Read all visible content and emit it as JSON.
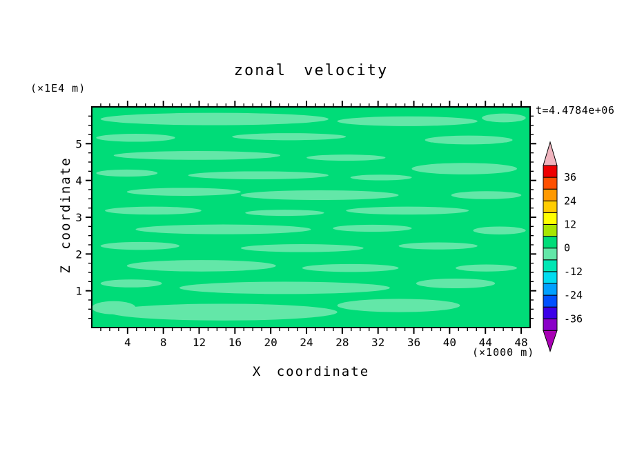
{
  "title": "zonal velocity",
  "time_label": "t=4.4784e+06",
  "y_unit_label": "(×1E4 m)",
  "x_unit_label": "(×1000 m)",
  "xlabel": "X coordinate",
  "ylabel": "Z coordinate",
  "chart_data": {
    "type": "heatmap",
    "title": "zonal velocity",
    "xlabel": "X coordinate",
    "ylabel": "Z coordinate",
    "x_units": "(×1000 m)",
    "y_units": "(×1E4 m)",
    "time_annotation": "t=4.4784e+06",
    "xlim": [
      0,
      49
    ],
    "ylim": [
      0,
      6
    ],
    "xticks": [
      4,
      8,
      12,
      16,
      20,
      24,
      28,
      32,
      36,
      40,
      44,
      48
    ],
    "yticks": [
      1,
      2,
      3,
      4,
      5
    ],
    "x_minor_step": 1,
    "y_minor_step": 0.25,
    "grid": false,
    "field_note": "zonal velocity field is near zero everywhere: base color is the 0..6 contour band, streaks are the -6..0 band",
    "field_colors": {
      "base": "#00DC78",
      "band": "#63E7A8"
    },
    "colorbar": {
      "position": "right",
      "tick_values": [
        36,
        24,
        12,
        0,
        -12,
        -24,
        -36
      ],
      "levels": [
        -42,
        -36,
        -30,
        -24,
        -18,
        -12,
        -6,
        0,
        6,
        12,
        18,
        24,
        30,
        36,
        42
      ],
      "colors_bottom_to_top": [
        "#8A00C8",
        "#3C00E8",
        "#0050FF",
        "#00A0FF",
        "#00DCF0",
        "#00E6B4",
        "#63E7A8",
        "#00DC78",
        "#A8E600",
        "#FFFF00",
        "#FFCC00",
        "#FF9900",
        "#FF5000",
        "#EE0000"
      ],
      "under_arrow_color": "#A800B4",
      "over_arrow_color": "#F0B4BE"
    },
    "bands": [
      {
        "cx": 0.28,
        "cy": 0.055,
        "rx": 0.26,
        "ry": 0.028
      },
      {
        "cx": 0.72,
        "cy": 0.065,
        "rx": 0.16,
        "ry": 0.022
      },
      {
        "cx": 0.94,
        "cy": 0.05,
        "rx": 0.05,
        "ry": 0.02
      },
      {
        "cx": 0.1,
        "cy": 0.14,
        "rx": 0.09,
        "ry": 0.018
      },
      {
        "cx": 0.45,
        "cy": 0.135,
        "rx": 0.13,
        "ry": 0.016
      },
      {
        "cx": 0.86,
        "cy": 0.15,
        "rx": 0.1,
        "ry": 0.02
      },
      {
        "cx": 0.24,
        "cy": 0.22,
        "rx": 0.19,
        "ry": 0.02
      },
      {
        "cx": 0.58,
        "cy": 0.23,
        "rx": 0.09,
        "ry": 0.014
      },
      {
        "cx": 0.85,
        "cy": 0.28,
        "rx": 0.12,
        "ry": 0.026
      },
      {
        "cx": 0.08,
        "cy": 0.3,
        "rx": 0.07,
        "ry": 0.016
      },
      {
        "cx": 0.38,
        "cy": 0.31,
        "rx": 0.16,
        "ry": 0.018
      },
      {
        "cx": 0.66,
        "cy": 0.32,
        "rx": 0.07,
        "ry": 0.013
      },
      {
        "cx": 0.21,
        "cy": 0.385,
        "rx": 0.13,
        "ry": 0.018
      },
      {
        "cx": 0.52,
        "cy": 0.4,
        "rx": 0.18,
        "ry": 0.022
      },
      {
        "cx": 0.9,
        "cy": 0.4,
        "rx": 0.08,
        "ry": 0.018
      },
      {
        "cx": 0.14,
        "cy": 0.47,
        "rx": 0.11,
        "ry": 0.018
      },
      {
        "cx": 0.44,
        "cy": 0.48,
        "rx": 0.09,
        "ry": 0.014
      },
      {
        "cx": 0.72,
        "cy": 0.47,
        "rx": 0.14,
        "ry": 0.018
      },
      {
        "cx": 0.3,
        "cy": 0.555,
        "rx": 0.2,
        "ry": 0.022
      },
      {
        "cx": 0.64,
        "cy": 0.55,
        "rx": 0.09,
        "ry": 0.016
      },
      {
        "cx": 0.93,
        "cy": 0.56,
        "rx": 0.06,
        "ry": 0.018
      },
      {
        "cx": 0.11,
        "cy": 0.63,
        "rx": 0.09,
        "ry": 0.018
      },
      {
        "cx": 0.48,
        "cy": 0.64,
        "rx": 0.14,
        "ry": 0.018
      },
      {
        "cx": 0.79,
        "cy": 0.63,
        "rx": 0.09,
        "ry": 0.016
      },
      {
        "cx": 0.25,
        "cy": 0.72,
        "rx": 0.17,
        "ry": 0.026
      },
      {
        "cx": 0.59,
        "cy": 0.73,
        "rx": 0.11,
        "ry": 0.018
      },
      {
        "cx": 0.9,
        "cy": 0.73,
        "rx": 0.07,
        "ry": 0.016
      },
      {
        "cx": 0.09,
        "cy": 0.8,
        "rx": 0.07,
        "ry": 0.018
      },
      {
        "cx": 0.44,
        "cy": 0.82,
        "rx": 0.24,
        "ry": 0.028
      },
      {
        "cx": 0.83,
        "cy": 0.8,
        "rx": 0.09,
        "ry": 0.022
      },
      {
        "cx": 0.05,
        "cy": 0.91,
        "rx": 0.05,
        "ry": 0.03
      },
      {
        "cx": 0.3,
        "cy": 0.93,
        "rx": 0.26,
        "ry": 0.038
      },
      {
        "cx": 0.7,
        "cy": 0.9,
        "rx": 0.14,
        "ry": 0.03
      }
    ]
  }
}
